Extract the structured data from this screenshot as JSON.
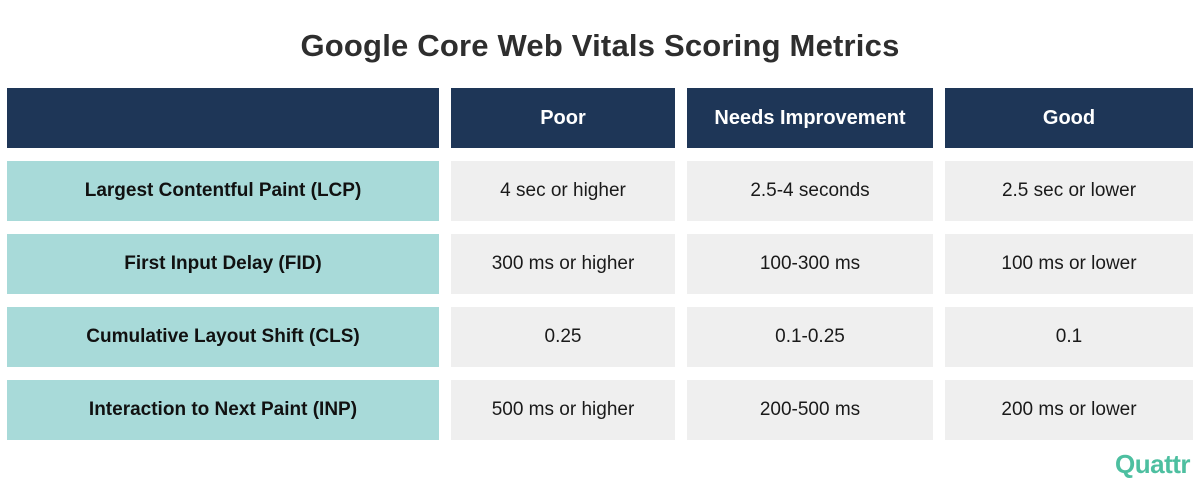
{
  "title": "Google Core Web Vitals Scoring Metrics",
  "table": {
    "headers": [
      "",
      "Poor",
      "Needs Improvement",
      "Good"
    ],
    "rows": [
      {
        "label": "Largest Contentful Paint (LCP)",
        "poor": "4 sec or higher",
        "needs_improvement": "2.5-4 seconds",
        "good": "2.5 sec or lower"
      },
      {
        "label": "First Input Delay (FID)",
        "poor": "300 ms or higher",
        "needs_improvement": "100-300 ms",
        "good": "100 ms or lower"
      },
      {
        "label": "Cumulative Layout Shift (CLS)",
        "poor": "0.25",
        "needs_improvement": "0.1-0.25",
        "good": "0.1"
      },
      {
        "label": "Interaction to Next Paint (INP)",
        "poor": "500 ms or higher",
        "needs_improvement": "200-500 ms",
        "good": "200 ms or lower"
      }
    ]
  },
  "logo": {
    "text": "Quattr"
  },
  "colors": {
    "header_bg": "#1e3657",
    "row_label_bg": "#a8dad9",
    "value_bg": "#efefef",
    "logo": "#4dbfa0"
  }
}
